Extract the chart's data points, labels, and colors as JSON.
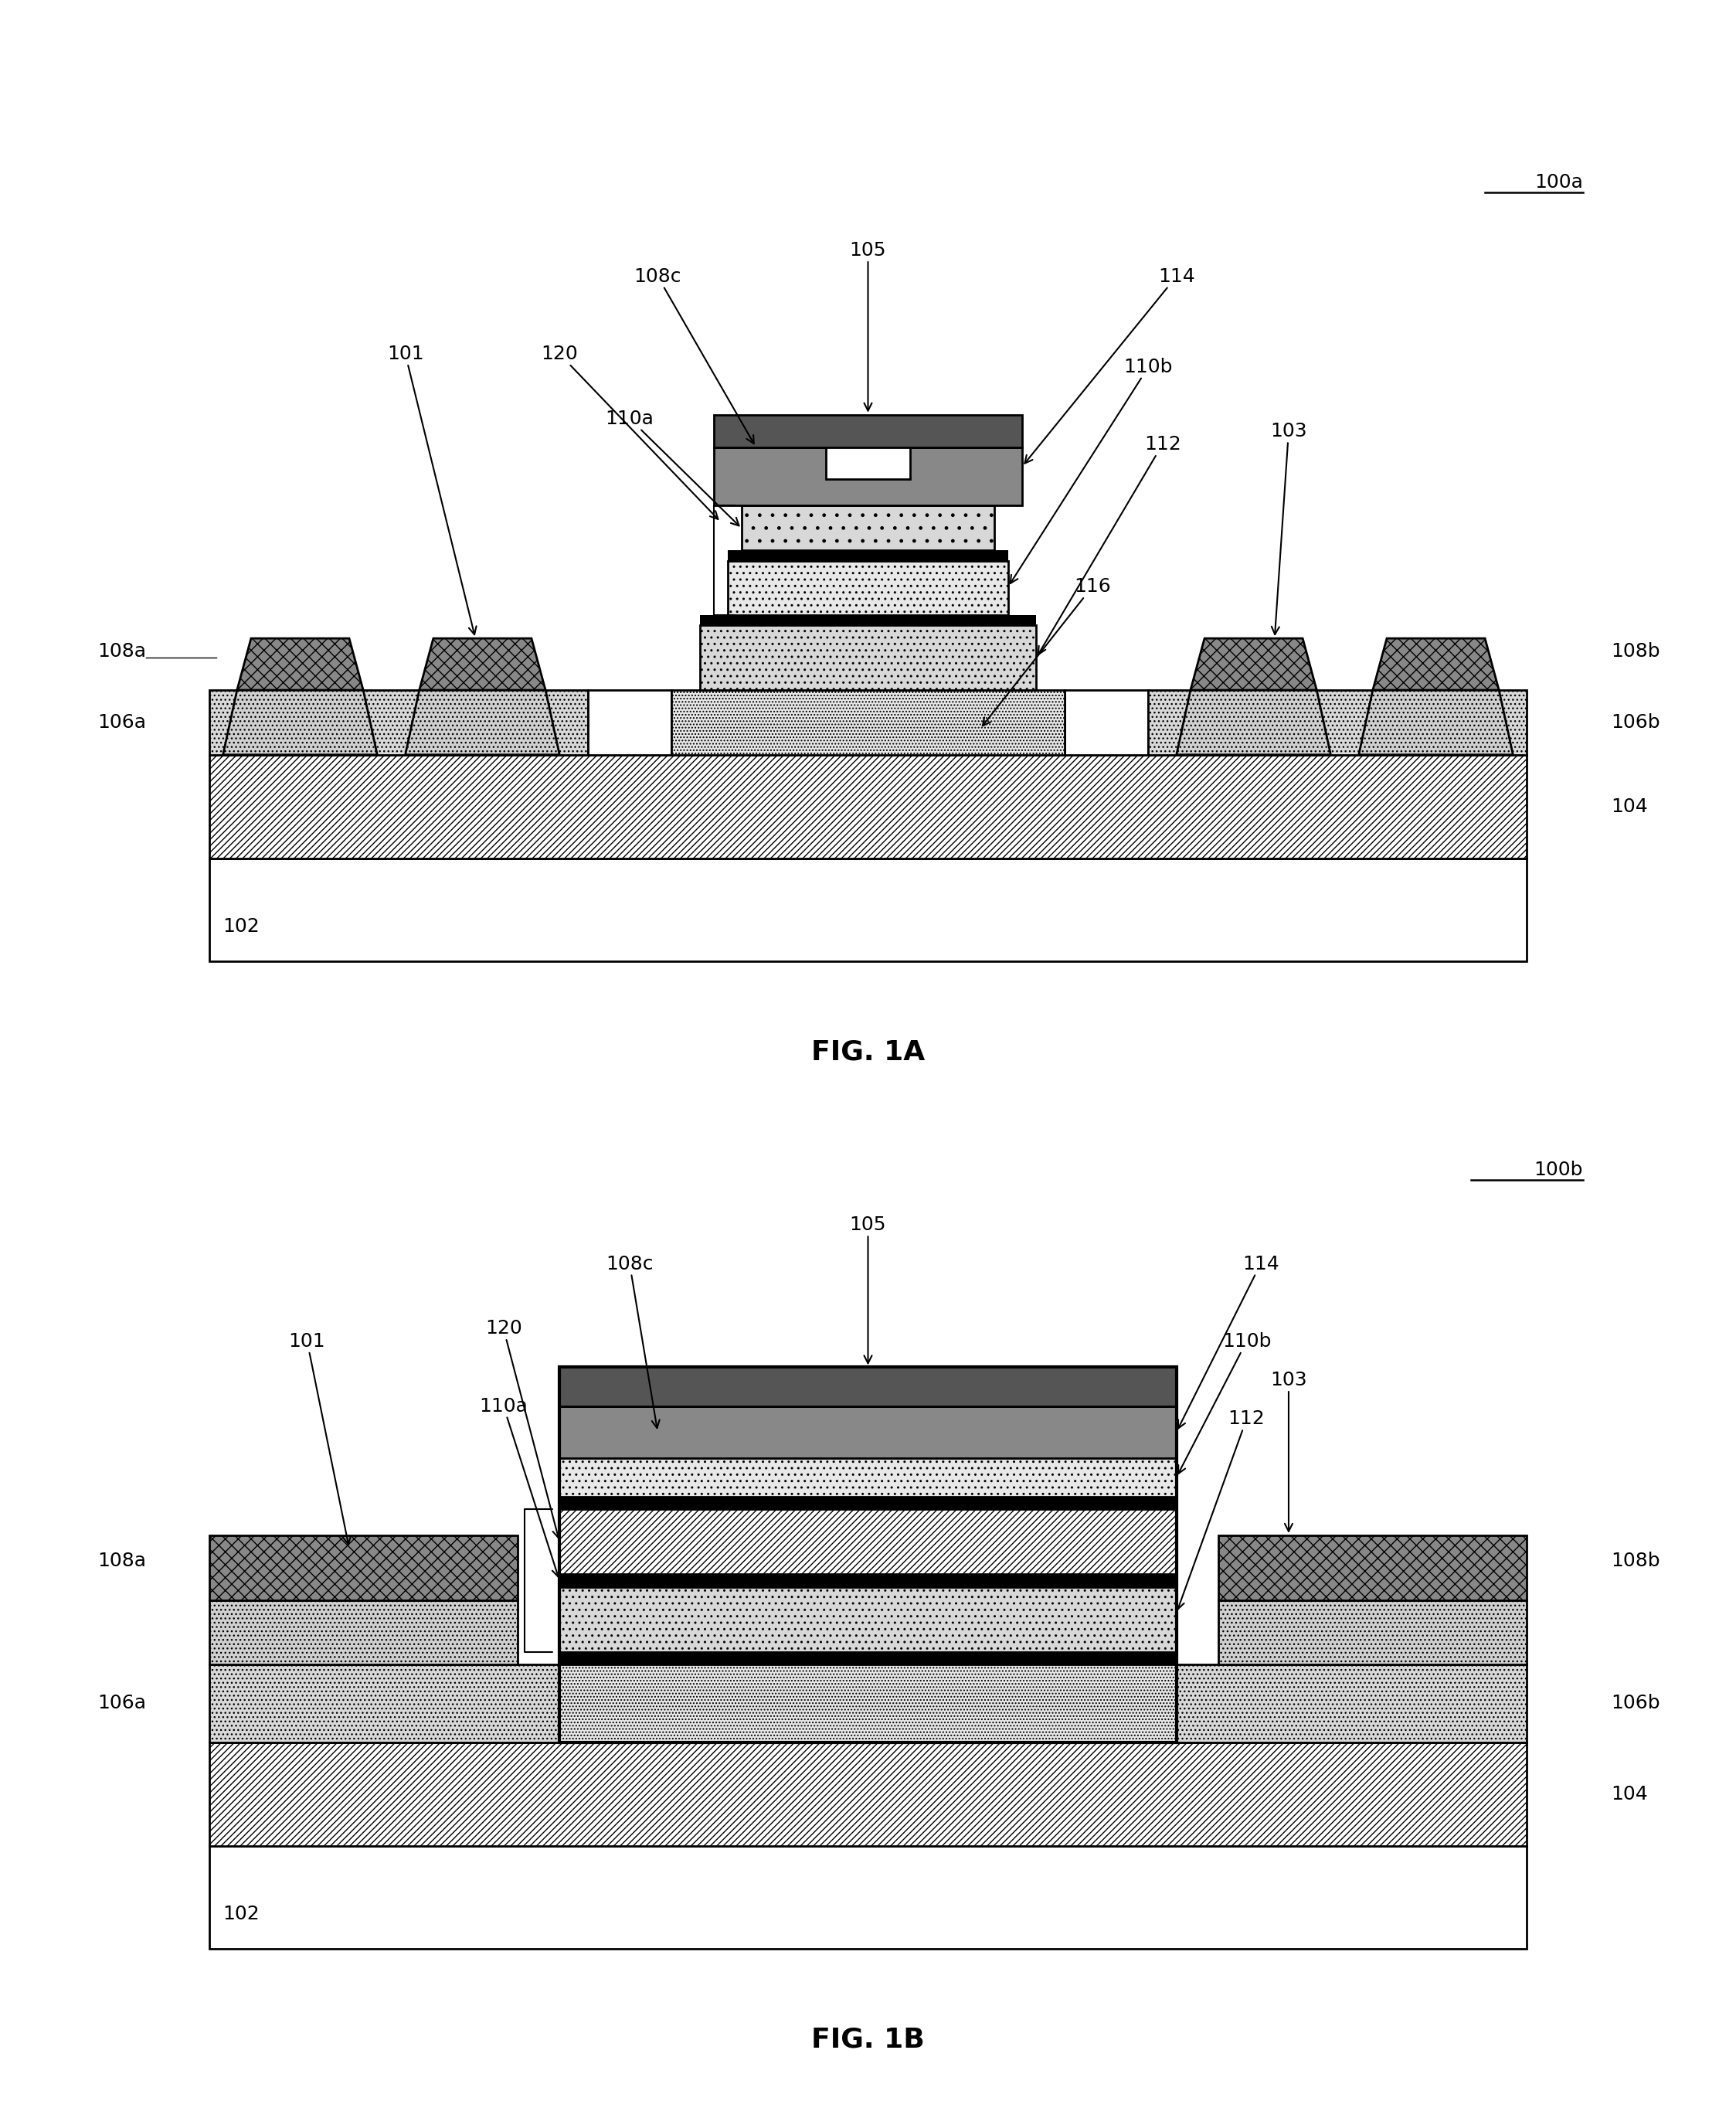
{
  "fig_width": 22.47,
  "fig_height": 27.19,
  "lw": 2.0,
  "fs": 18,
  "fs_title": 26,
  "fig1_title": "FIG. 1A",
  "fig2_title": "FIG. 1B",
  "ref1_label": "100a",
  "ref2_label": "100b",
  "colors": {
    "substrate": "#ffffff",
    "layer104_fc": "#ffffff",
    "layer106_fc": "#d8d8d8",
    "contact_top": "#888888",
    "contact_bot": "#d0d0d0",
    "gate_metal": "#888888",
    "top_metal": "#555555",
    "dot_light": "#e8e8e8",
    "dot_med": "#d8d8d8",
    "diag_layer": "#e0e0e0",
    "black_line": "#000000"
  }
}
